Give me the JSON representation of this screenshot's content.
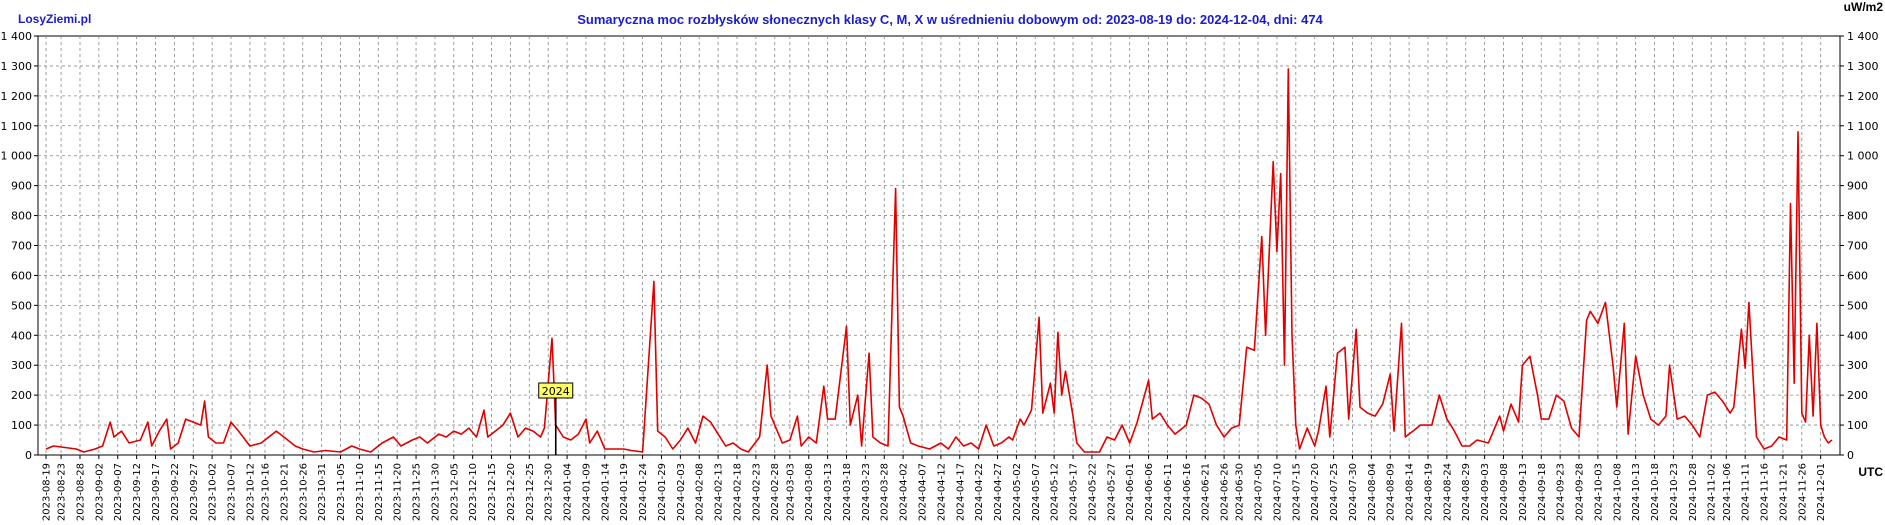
{
  "brand": "LosyZiemi.pl",
  "unit_label": "uW/m2",
  "utc_label": "UTC",
  "colors": {
    "line": "#e00000",
    "grid": "#888888",
    "title": "#1c1ccc",
    "marker_bg": "#ffff66"
  },
  "chart_data": {
    "type": "line",
    "title": "Sumaryczna moc rozbłysków słonecznych klasy C, M, X w uśrednieniu dobowym od: 2023-08-19 do: 2024-12-04, dni: 474",
    "xlabel": "",
    "ylabel": "",
    "ylim": [
      0,
      1400
    ],
    "y_ticks": [
      0,
      100,
      200,
      300,
      400,
      500,
      600,
      700,
      800,
      900,
      1000,
      1100,
      1200,
      1300,
      1400
    ],
    "y_tick_labels": [
      "0",
      "100",
      "200",
      "300",
      "400",
      "500",
      "600",
      "700",
      "800",
      "900",
      "1 000",
      "1 100",
      "1 200",
      "1 300",
      "1 400"
    ],
    "x_start": "2023-08-19",
    "x_end": "2024-12-04",
    "x_tick_labels": [
      "2023-08-19",
      "2023-08-23",
      "2023-08-28",
      "2023-09-02",
      "2023-09-07",
      "2023-09-12",
      "2023-09-17",
      "2023-09-22",
      "2023-09-27",
      "2023-10-02",
      "2023-10-07",
      "2023-10-12",
      "2023-10-16",
      "2023-10-21",
      "2023-10-26",
      "2023-10-31",
      "2023-11-05",
      "2023-11-10",
      "2023-11-15",
      "2023-11-20",
      "2023-11-25",
      "2023-11-30",
      "2023-12-05",
      "2023-12-10",
      "2023-12-15",
      "2023-12-20",
      "2023-12-25",
      "2023-12-30",
      "2024-01-04",
      "2024-01-09",
      "2024-01-14",
      "2024-01-19",
      "2024-01-24",
      "2024-01-29",
      "2024-02-03",
      "2024-02-08",
      "2024-02-13",
      "2024-02-18",
      "2024-02-23",
      "2024-02-28",
      "2024-03-03",
      "2024-03-08",
      "2024-03-13",
      "2024-03-18",
      "2024-03-23",
      "2024-03-28",
      "2024-04-02",
      "2024-04-07",
      "2024-04-12",
      "2024-04-17",
      "2024-04-22",
      "2024-04-27",
      "2024-05-02",
      "2024-05-07",
      "2024-05-12",
      "2024-05-17",
      "2024-05-22",
      "2024-05-27",
      "2024-06-01",
      "2024-06-06",
      "2024-06-11",
      "2024-06-16",
      "2024-06-21",
      "2024-06-26",
      "2024-06-30",
      "2024-07-05",
      "2024-07-10",
      "2024-07-15",
      "2024-07-20",
      "2024-07-25",
      "2024-07-30",
      "2024-08-04",
      "2024-08-09",
      "2024-08-14",
      "2024-08-19",
      "2024-08-24",
      "2024-08-29",
      "2024-09-03",
      "2024-09-08",
      "2024-09-13",
      "2024-09-18",
      "2024-09-23",
      "2024-09-28",
      "2024-10-03",
      "2024-10-08",
      "2024-10-13",
      "2024-10-18",
      "2024-10-23",
      "2024-10-28",
      "2024-11-02",
      "2024-11-06",
      "2024-11-11",
      "2024-11-16",
      "2024-11-21",
      "2024-11-26",
      "2024-12-01"
    ],
    "year_marker": {
      "label": "2024",
      "date": "2024-01-01"
    },
    "grid": true,
    "series": [
      {
        "points": [
          [
            "2023-08-19",
            20
          ],
          [
            "2023-08-21",
            30
          ],
          [
            "2023-08-24",
            25
          ],
          [
            "2023-08-27",
            20
          ],
          [
            "2023-08-29",
            10
          ],
          [
            "2023-09-01",
            20
          ],
          [
            "2023-09-03",
            30
          ],
          [
            "2023-09-05",
            110
          ],
          [
            "2023-09-06",
            60
          ],
          [
            "2023-09-08",
            80
          ],
          [
            "2023-09-10",
            40
          ],
          [
            "2023-09-13",
            50
          ],
          [
            "2023-09-15",
            110
          ],
          [
            "2023-09-16",
            30
          ],
          [
            "2023-09-18",
            80
          ],
          [
            "2023-09-20",
            120
          ],
          [
            "2023-09-21",
            20
          ],
          [
            "2023-09-23",
            40
          ],
          [
            "2023-09-25",
            120
          ],
          [
            "2023-09-27",
            110
          ],
          [
            "2023-09-29",
            100
          ],
          [
            "2023-09-30",
            180
          ],
          [
            "2023-10-01",
            60
          ],
          [
            "2023-10-03",
            40
          ],
          [
            "2023-10-05",
            40
          ],
          [
            "2023-10-07",
            110
          ],
          [
            "2023-10-09",
            80
          ],
          [
            "2023-10-12",
            30
          ],
          [
            "2023-10-15",
            40
          ],
          [
            "2023-10-17",
            60
          ],
          [
            "2023-10-19",
            80
          ],
          [
            "2023-10-21",
            60
          ],
          [
            "2023-10-24",
            30
          ],
          [
            "2023-10-26",
            20
          ],
          [
            "2023-10-29",
            10
          ],
          [
            "2023-11-01",
            15
          ],
          [
            "2023-11-05",
            10
          ],
          [
            "2023-11-08",
            30
          ],
          [
            "2023-11-10",
            20
          ],
          [
            "2023-11-13",
            10
          ],
          [
            "2023-11-16",
            40
          ],
          [
            "2023-11-19",
            60
          ],
          [
            "2023-11-21",
            30
          ],
          [
            "2023-11-24",
            50
          ],
          [
            "2023-11-26",
            60
          ],
          [
            "2023-11-28",
            40
          ],
          [
            "2023-12-01",
            70
          ],
          [
            "2023-12-03",
            60
          ],
          [
            "2023-12-05",
            80
          ],
          [
            "2023-12-07",
            70
          ],
          [
            "2023-12-09",
            90
          ],
          [
            "2023-12-11",
            60
          ],
          [
            "2023-12-13",
            150
          ],
          [
            "2023-12-14",
            60
          ],
          [
            "2023-12-16",
            80
          ],
          [
            "2023-12-18",
            100
          ],
          [
            "2023-12-20",
            140
          ],
          [
            "2023-12-22",
            60
          ],
          [
            "2023-12-24",
            90
          ],
          [
            "2023-12-26",
            80
          ],
          [
            "2023-12-28",
            60
          ],
          [
            "2023-12-29",
            90
          ],
          [
            "2023-12-31",
            390
          ],
          [
            "2024-01-01",
            100
          ],
          [
            "2024-01-03",
            60
          ],
          [
            "2024-01-05",
            50
          ],
          [
            "2024-01-07",
            70
          ],
          [
            "2024-01-09",
            120
          ],
          [
            "2024-01-10",
            40
          ],
          [
            "2024-01-12",
            80
          ],
          [
            "2024-01-14",
            20
          ],
          [
            "2024-01-17",
            20
          ],
          [
            "2024-01-19",
            20
          ],
          [
            "2024-01-21",
            15
          ],
          [
            "2024-01-24",
            10
          ],
          [
            "2024-01-27",
            580
          ],
          [
            "2024-01-28",
            80
          ],
          [
            "2024-01-30",
            60
          ],
          [
            "2024-02-01",
            20
          ],
          [
            "2024-02-03",
            50
          ],
          [
            "2024-02-05",
            90
          ],
          [
            "2024-02-07",
            40
          ],
          [
            "2024-02-09",
            130
          ],
          [
            "2024-02-11",
            110
          ],
          [
            "2024-02-13",
            70
          ],
          [
            "2024-02-15",
            30
          ],
          [
            "2024-02-17",
            40
          ],
          [
            "2024-02-19",
            20
          ],
          [
            "2024-02-21",
            10
          ],
          [
            "2024-02-24",
            60
          ],
          [
            "2024-02-26",
            300
          ],
          [
            "2024-02-27",
            130
          ],
          [
            "2024-03-01",
            40
          ],
          [
            "2024-03-03",
            50
          ],
          [
            "2024-03-05",
            130
          ],
          [
            "2024-03-06",
            30
          ],
          [
            "2024-03-08",
            60
          ],
          [
            "2024-03-10",
            40
          ],
          [
            "2024-03-12",
            230
          ],
          [
            "2024-03-13",
            120
          ],
          [
            "2024-03-15",
            120
          ],
          [
            "2024-03-18",
            430
          ],
          [
            "2024-03-19",
            100
          ],
          [
            "2024-03-21",
            200
          ],
          [
            "2024-03-22",
            30
          ],
          [
            "2024-03-24",
            340
          ],
          [
            "2024-03-25",
            60
          ],
          [
            "2024-03-27",
            40
          ],
          [
            "2024-03-29",
            30
          ],
          [
            "2024-03-31",
            890
          ],
          [
            "2024-04-01",
            160
          ],
          [
            "2024-04-02",
            130
          ],
          [
            "2024-04-04",
            40
          ],
          [
            "2024-04-06",
            30
          ],
          [
            "2024-04-09",
            20
          ],
          [
            "2024-04-12",
            40
          ],
          [
            "2024-04-14",
            20
          ],
          [
            "2024-04-16",
            60
          ],
          [
            "2024-04-18",
            30
          ],
          [
            "2024-04-20",
            40
          ],
          [
            "2024-04-22",
            20
          ],
          [
            "2024-04-24",
            100
          ],
          [
            "2024-04-26",
            30
          ],
          [
            "2024-04-28",
            40
          ],
          [
            "2024-04-30",
            60
          ],
          [
            "2024-05-01",
            50
          ],
          [
            "2024-05-03",
            120
          ],
          [
            "2024-05-04",
            100
          ],
          [
            "2024-05-06",
            150
          ],
          [
            "2024-05-08",
            460
          ],
          [
            "2024-05-09",
            140
          ],
          [
            "2024-05-11",
            240
          ],
          [
            "2024-05-12",
            140
          ],
          [
            "2024-05-13",
            410
          ],
          [
            "2024-05-14",
            200
          ],
          [
            "2024-05-15",
            280
          ],
          [
            "2024-05-17",
            130
          ],
          [
            "2024-05-18",
            40
          ],
          [
            "2024-05-20",
            10
          ],
          [
            "2024-05-22",
            10
          ],
          [
            "2024-05-24",
            10
          ],
          [
            "2024-05-26",
            60
          ],
          [
            "2024-05-28",
            50
          ],
          [
            "2024-05-30",
            100
          ],
          [
            "2024-06-01",
            40
          ],
          [
            "2024-06-03",
            110
          ],
          [
            "2024-06-06",
            250
          ],
          [
            "2024-06-07",
            120
          ],
          [
            "2024-06-09",
            140
          ],
          [
            "2024-06-11",
            100
          ],
          [
            "2024-06-13",
            70
          ],
          [
            "2024-06-16",
            100
          ],
          [
            "2024-06-18",
            200
          ],
          [
            "2024-06-20",
            190
          ],
          [
            "2024-06-22",
            170
          ],
          [
            "2024-06-24",
            100
          ],
          [
            "2024-06-26",
            60
          ],
          [
            "2024-06-28",
            90
          ],
          [
            "2024-06-30",
            100
          ],
          [
            "2024-07-02",
            360
          ],
          [
            "2024-07-04",
            350
          ],
          [
            "2024-07-06",
            730
          ],
          [
            "2024-07-07",
            400
          ],
          [
            "2024-07-09",
            980
          ],
          [
            "2024-07-10",
            680
          ],
          [
            "2024-07-11",
            940
          ],
          [
            "2024-07-12",
            300
          ],
          [
            "2024-07-13",
            1290
          ],
          [
            "2024-07-14",
            400
          ],
          [
            "2024-07-15",
            100
          ],
          [
            "2024-07-16",
            20
          ],
          [
            "2024-07-18",
            90
          ],
          [
            "2024-07-20",
            30
          ],
          [
            "2024-07-21",
            80
          ],
          [
            "2024-07-23",
            230
          ],
          [
            "2024-07-24",
            60
          ],
          [
            "2024-07-26",
            340
          ],
          [
            "2024-07-28",
            360
          ],
          [
            "2024-07-29",
            120
          ],
          [
            "2024-07-31",
            420
          ],
          [
            "2024-08-01",
            160
          ],
          [
            "2024-08-03",
            140
          ],
          [
            "2024-08-05",
            130
          ],
          [
            "2024-08-07",
            170
          ],
          [
            "2024-08-09",
            270
          ],
          [
            "2024-08-10",
            80
          ],
          [
            "2024-08-12",
            440
          ],
          [
            "2024-08-13",
            60
          ],
          [
            "2024-08-15",
            80
          ],
          [
            "2024-08-17",
            100
          ],
          [
            "2024-08-20",
            100
          ],
          [
            "2024-08-22",
            200
          ],
          [
            "2024-08-24",
            120
          ],
          [
            "2024-08-26",
            80
          ],
          [
            "2024-08-28",
            30
          ],
          [
            "2024-08-30",
            30
          ],
          [
            "2024-09-01",
            50
          ],
          [
            "2024-09-04",
            40
          ],
          [
            "2024-09-07",
            130
          ],
          [
            "2024-09-08",
            80
          ],
          [
            "2024-09-10",
            170
          ],
          [
            "2024-09-12",
            110
          ],
          [
            "2024-09-13",
            300
          ],
          [
            "2024-09-15",
            330
          ],
          [
            "2024-09-17",
            200
          ],
          [
            "2024-09-18",
            120
          ],
          [
            "2024-09-20",
            120
          ],
          [
            "2024-09-22",
            200
          ],
          [
            "2024-09-24",
            180
          ],
          [
            "2024-09-26",
            90
          ],
          [
            "2024-09-28",
            60
          ],
          [
            "2024-09-30",
            450
          ],
          [
            "2024-10-01",
            480
          ],
          [
            "2024-10-03",
            440
          ],
          [
            "2024-10-05",
            510
          ],
          [
            "2024-10-07",
            300
          ],
          [
            "2024-10-08",
            160
          ],
          [
            "2024-10-10",
            440
          ],
          [
            "2024-10-11",
            70
          ],
          [
            "2024-10-13",
            330
          ],
          [
            "2024-10-15",
            200
          ],
          [
            "2024-10-17",
            120
          ],
          [
            "2024-10-19",
            100
          ],
          [
            "2024-10-21",
            130
          ],
          [
            "2024-10-22",
            300
          ],
          [
            "2024-10-24",
            120
          ],
          [
            "2024-10-26",
            130
          ],
          [
            "2024-10-28",
            100
          ],
          [
            "2024-10-30",
            60
          ],
          [
            "2024-11-01",
            200
          ],
          [
            "2024-11-03",
            210
          ],
          [
            "2024-11-05",
            180
          ],
          [
            "2024-11-07",
            140
          ],
          [
            "2024-11-08",
            160
          ],
          [
            "2024-11-10",
            420
          ],
          [
            "2024-11-11",
            290
          ],
          [
            "2024-11-12",
            510
          ],
          [
            "2024-11-14",
            60
          ],
          [
            "2024-11-16",
            20
          ],
          [
            "2024-11-18",
            30
          ],
          [
            "2024-11-20",
            60
          ],
          [
            "2024-11-22",
            50
          ],
          [
            "2024-11-23",
            840
          ],
          [
            "2024-11-24",
            240
          ],
          [
            "2024-11-25",
            1080
          ],
          [
            "2024-11-26",
            140
          ],
          [
            "2024-11-27",
            110
          ],
          [
            "2024-11-28",
            400
          ],
          [
            "2024-11-29",
            130
          ],
          [
            "2024-11-30",
            440
          ],
          [
            "2024-12-01",
            100
          ],
          [
            "2024-12-02",
            60
          ],
          [
            "2024-12-03",
            40
          ],
          [
            "2024-12-04",
            50
          ]
        ]
      }
    ]
  }
}
